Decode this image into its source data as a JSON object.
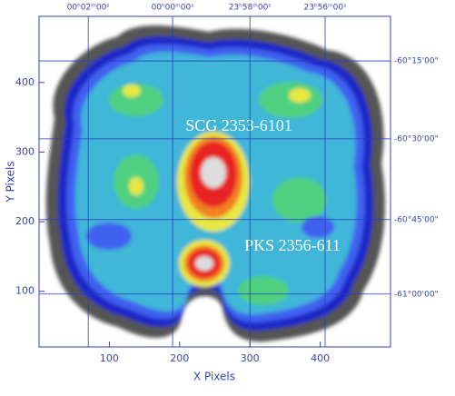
{
  "chart_data": {
    "type": "image",
    "xlabel": "X Pixels",
    "ylabel": "Y Pixels",
    "xlim": [
      0,
      500
    ],
    "ylim": [
      20,
      495
    ],
    "xticks": [
      100,
      200,
      300,
      400
    ],
    "yticks": [
      100,
      200,
      300,
      400
    ],
    "x2ticks": [
      {
        "value": 70,
        "label": "00ʰ02ᵐ00ˢ"
      },
      {
        "value": 190,
        "label": "00ʰ00ᵐ00ˢ"
      },
      {
        "value": 300,
        "label": "23ʰ58ᵐ00ˢ"
      },
      {
        "value": 407,
        "label": "23ʰ56ᵐ00ˢ"
      }
    ],
    "y2ticks": [
      {
        "value": 431,
        "label": "-60°15'00\""
      },
      {
        "value": 319,
        "label": "-60°30'00\""
      },
      {
        "value": 203,
        "label": "-60°45'00\""
      },
      {
        "value": 96,
        "label": "-61°00'00\""
      }
    ],
    "annotations": [
      "SCG 2353-6101",
      "PKS 2356-611"
    ]
  }
}
